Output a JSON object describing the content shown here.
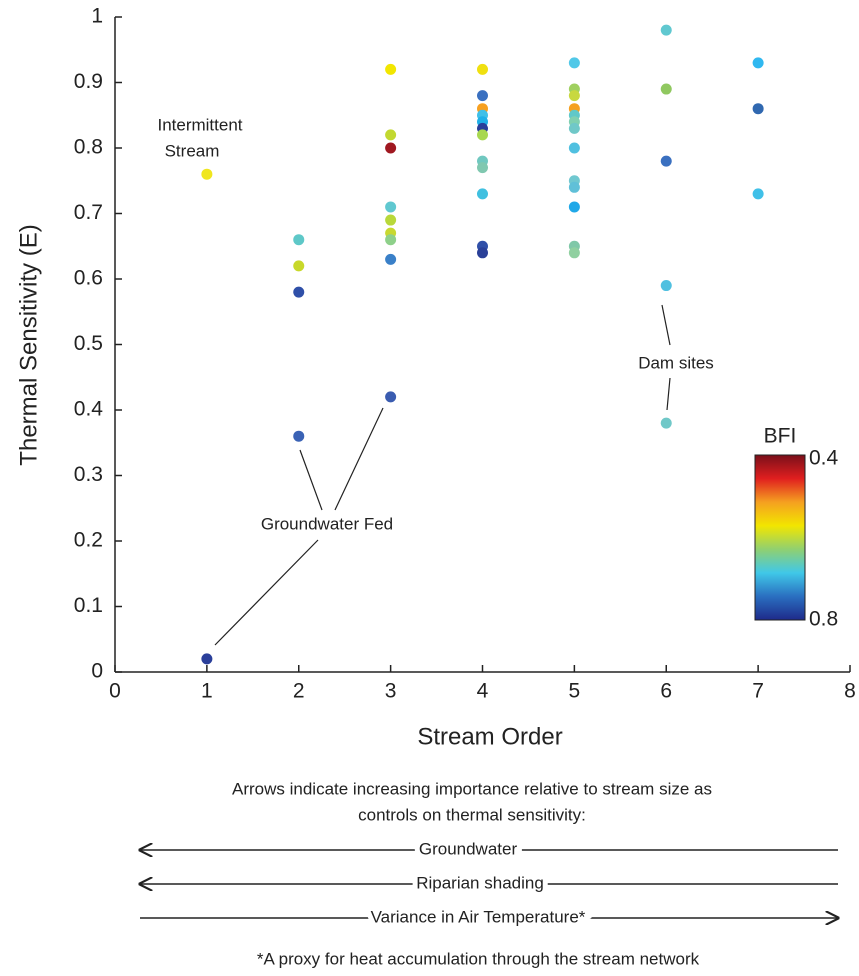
{
  "chart_data": {
    "type": "scatter",
    "xlabel": "Stream Order",
    "ylabel": "Thermal Sensitivity (E)",
    "xlim": [
      0,
      8
    ],
    "ylim": [
      0,
      1
    ],
    "xticks": [
      0,
      1,
      2,
      3,
      4,
      5,
      6,
      7,
      8
    ],
    "yticks": [
      0,
      0.1,
      0.2,
      0.3,
      0.4,
      0.5,
      0.6,
      0.7,
      0.8,
      0.9,
      1
    ],
    "series": [
      {
        "x": [
          1,
          1,
          2,
          2,
          2,
          2,
          3,
          3,
          3,
          3,
          3,
          3,
          3,
          3,
          3,
          4,
          4,
          4,
          4,
          4,
          4,
          4,
          4,
          4,
          4,
          4,
          4,
          5,
          5,
          5,
          5,
          5,
          5,
          5,
          5,
          5,
          5,
          5,
          5,
          5,
          6,
          6,
          6,
          6,
          6,
          7,
          7,
          7
        ],
        "values": [
          0.76,
          0.02,
          0.66,
          0.62,
          0.58,
          0.36,
          0.92,
          0.82,
          0.8,
          0.71,
          0.69,
          0.67,
          0.66,
          0.63,
          0.42,
          0.92,
          0.88,
          0.86,
          0.85,
          0.84,
          0.83,
          0.82,
          0.78,
          0.77,
          0.73,
          0.65,
          0.64,
          0.93,
          0.89,
          0.88,
          0.86,
          0.85,
          0.84,
          0.83,
          0.8,
          0.75,
          0.74,
          0.71,
          0.65,
          0.64,
          0.98,
          0.89,
          0.78,
          0.59,
          0.38,
          0.93,
          0.86,
          0.73
        ],
        "colors": [
          "#f0e61e",
          "#2a3f9a",
          "#5ec8c8",
          "#c8d82a",
          "#2f4fa8",
          "#3a62b5",
          "#f2e600",
          "#c2d830",
          "#a01820",
          "#60c8d0",
          "#b8d83a",
          "#c8d830",
          "#8ed08a",
          "#3a80c8",
          "#3a5cb0",
          "#f0e010",
          "#3a70c0",
          "#f7a020",
          "#40c0e8",
          "#20b0e8",
          "#2a3f9a",
          "#a8d850",
          "#70c8c0",
          "#80c8b0",
          "#40c0e0",
          "#3050a8",
          "#2a4098",
          "#50c8e8",
          "#a0d060",
          "#c8d840",
          "#f5a020",
          "#60c8c8",
          "#80d0b0",
          "#70c8c8",
          "#50c0e0",
          "#70c8d0",
          "#60c0d8",
          "#20a8e8",
          "#80c8a8",
          "#90d0a0",
          "#60c8d0",
          "#90c860",
          "#3a70c0",
          "#50c0e0",
          "#70c8c8",
          "#30b8f0",
          "#3068b0",
          "#40c0e8"
        ]
      }
    ],
    "colorbar": {
      "title": "BFI",
      "ticks": [
        0.4,
        0.8
      ],
      "colors": [
        "#7a0f1a",
        "#e01f1f",
        "#f5a020",
        "#f2e600",
        "#90d070",
        "#40c8e8",
        "#2a6fc0",
        "#1e2a8a"
      ]
    },
    "annotations": [
      {
        "lines": [
          "Intermittent",
          "Stream"
        ]
      },
      {
        "lines": [
          "Groundwater Fed"
        ]
      },
      {
        "lines": [
          "Dam sites"
        ]
      }
    ]
  },
  "notes": {
    "caption": [
      "Arrows indicate increasing importance relative to stream size as",
      "controls on thermal sensitivity:"
    ],
    "arrows": [
      {
        "label": "Groundwater",
        "direction": "left"
      },
      {
        "label": "Riparian shading",
        "direction": "left"
      },
      {
        "label": "Variance in Air Temperature*",
        "direction": "right"
      }
    ],
    "footnote": "*A proxy for heat accumulation through the stream network"
  }
}
